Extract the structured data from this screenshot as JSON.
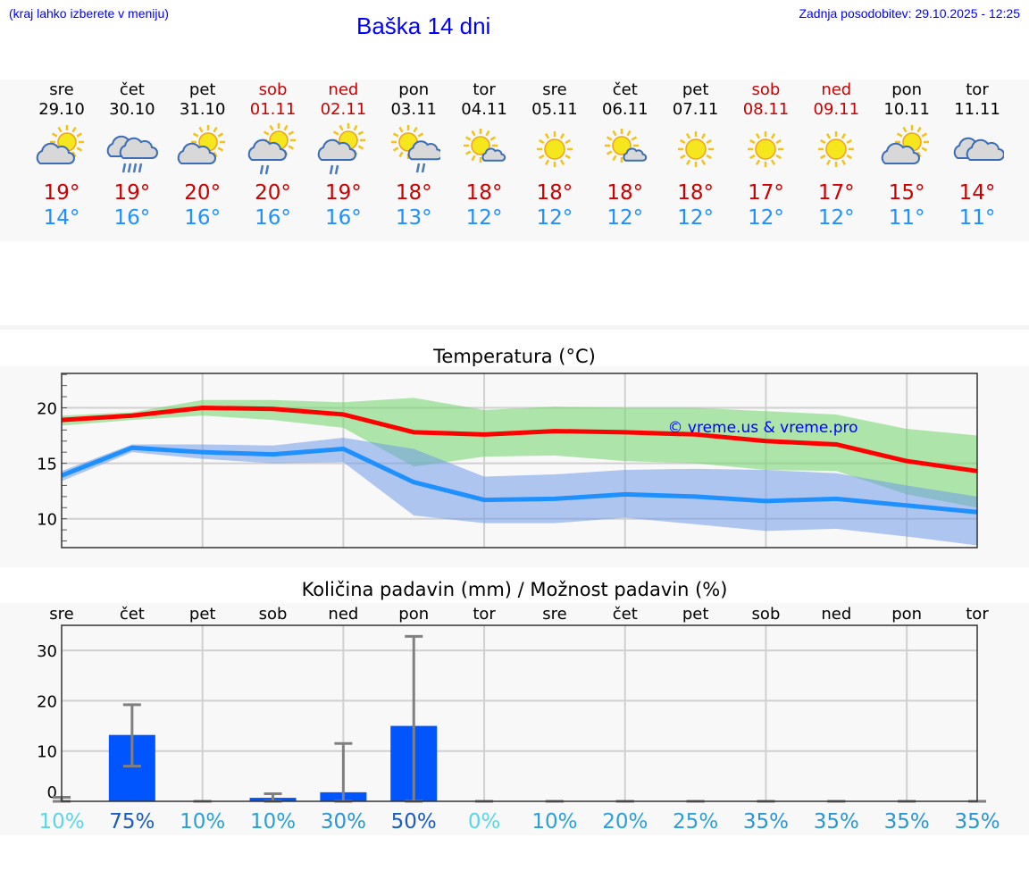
{
  "header": {
    "menu_hint": "(kraj lahko izberete v meniju)",
    "title": "Baška 14 dni",
    "updated": "Zadnja posodobitev: 29.10.2025 - 12:25"
  },
  "colors": {
    "weekday": "#000000",
    "weekend": "#cc0000",
    "max": "#cc0000",
    "min": "#1e90ff"
  },
  "days": [
    {
      "name": "sre",
      "date": "29.10",
      "weekend": false,
      "icon": "partly-cloudy",
      "max": "19°",
      "min": "14°"
    },
    {
      "name": "čet",
      "date": "30.10",
      "weekend": false,
      "icon": "cloudy-rain",
      "max": "19°",
      "min": "16°"
    },
    {
      "name": "pet",
      "date": "31.10",
      "weekend": false,
      "icon": "partly-cloudy",
      "max": "20°",
      "min": "16°"
    },
    {
      "name": "sob",
      "date": "01.11",
      "weekend": true,
      "icon": "partly-cloudy-light-rain",
      "max": "20°",
      "min": "16°"
    },
    {
      "name": "ned",
      "date": "02.11",
      "weekend": true,
      "icon": "partly-cloudy-light-rain",
      "max": "19°",
      "min": "16°"
    },
    {
      "name": "pon",
      "date": "03.11",
      "weekend": false,
      "icon": "sun-cloud-rain",
      "max": "18°",
      "min": "13°"
    },
    {
      "name": "tor",
      "date": "04.11",
      "weekend": false,
      "icon": "sun-small-cloud",
      "max": "18°",
      "min": "12°"
    },
    {
      "name": "sre",
      "date": "05.11",
      "weekend": false,
      "icon": "sun",
      "max": "18°",
      "min": "12°"
    },
    {
      "name": "čet",
      "date": "06.11",
      "weekend": false,
      "icon": "sun-small-cloud",
      "max": "18°",
      "min": "12°"
    },
    {
      "name": "pet",
      "date": "07.11",
      "weekend": false,
      "icon": "sun",
      "max": "18°",
      "min": "12°"
    },
    {
      "name": "sob",
      "date": "08.11",
      "weekend": true,
      "icon": "sun",
      "max": "17°",
      "min": "12°"
    },
    {
      "name": "ned",
      "date": "09.11",
      "weekend": true,
      "icon": "sun",
      "max": "17°",
      "min": "12°"
    },
    {
      "name": "pon",
      "date": "10.11",
      "weekend": false,
      "icon": "partly-cloudy",
      "max": "15°",
      "min": "11°"
    },
    {
      "name": "tor",
      "date": "11.11",
      "weekend": false,
      "icon": "cloudy",
      "max": "14°",
      "min": "11°"
    }
  ],
  "chart_data": [
    {
      "type": "line",
      "title": "Temperatura (°C)",
      "ylim": [
        7.4,
        23.1
      ],
      "yticks": [
        10,
        15,
        20
      ],
      "grid": true,
      "watermark": "© vreme.us & vreme.pro",
      "series": [
        {
          "name": "max",
          "color": "#ff0000",
          "values": [
            18.9,
            19.3,
            20.0,
            19.9,
            19.4,
            17.8,
            17.6,
            17.9,
            17.8,
            17.6,
            17.0,
            16.7,
            15.2,
            14.3
          ],
          "band_color": "#6fd36a",
          "band_upper": [
            19.3,
            19.6,
            20.7,
            20.7,
            20.5,
            20.9,
            19.8,
            20.1,
            20.0,
            20.0,
            19.7,
            19.4,
            18.1,
            17.5
          ],
          "band_lower": [
            18.4,
            18.9,
            19.3,
            18.9,
            18.2,
            14.7,
            15.6,
            15.7,
            15.2,
            15.0,
            14.4,
            14.3,
            12.2,
            11.0
          ]
        },
        {
          "name": "min",
          "color": "#1e90ff",
          "values": [
            13.9,
            16.4,
            16.0,
            15.8,
            16.3,
            13.3,
            11.7,
            11.8,
            12.2,
            12.0,
            11.6,
            11.8,
            11.2,
            10.6
          ],
          "band_color": "#6f9ae8",
          "band_upper": [
            14.3,
            16.7,
            16.7,
            16.6,
            17.3,
            16.3,
            13.8,
            14.0,
            14.4,
            14.5,
            14.4,
            14.1,
            13.0,
            12.0
          ],
          "band_lower": [
            13.4,
            16.0,
            15.4,
            15.0,
            15.1,
            10.3,
            9.6,
            9.6,
            10.1,
            9.5,
            8.9,
            9.1,
            8.4,
            7.6
          ]
        }
      ]
    },
    {
      "type": "bar",
      "title": "Količina padavin (mm) / Možnost padavin (%)",
      "ylim": [
        0,
        35
      ],
      "yticks": [
        0,
        10,
        20,
        30
      ],
      "grid": true,
      "categories": [
        "sre",
        "čet",
        "pet",
        "sob",
        "ned",
        "pon",
        "tor",
        "sre",
        "čet",
        "pet",
        "sob",
        "ned",
        "pon",
        "tor"
      ],
      "values": [
        0,
        13.2,
        0,
        0.7,
        1.8,
        15,
        0,
        0,
        0,
        0,
        0,
        0,
        0,
        0
      ],
      "err_low": [
        0,
        7,
        0,
        0,
        0,
        0,
        0,
        0,
        0,
        0,
        0,
        0,
        0,
        0
      ],
      "err_high": [
        0.8,
        19.2,
        0,
        1.5,
        11.5,
        32.8,
        0,
        0,
        0,
        0,
        0,
        0,
        0,
        0
      ],
      "probability": [
        "10%",
        "75%",
        "10%",
        "10%",
        "30%",
        "50%",
        "0%",
        "10%",
        "20%",
        "25%",
        "35%",
        "35%",
        "35%",
        "35%"
      ],
      "probability_colors": [
        "#5ad6e6",
        "#1a5cbf",
        "#2aa0d8",
        "#2aa0d8",
        "#2a96d4",
        "#1a5cbf",
        "#5ad6e6",
        "#2aa0d8",
        "#2aa0d8",
        "#2aa0d8",
        "#2a96d4",
        "#2a96d4",
        "#2a96d4",
        "#2a96d4"
      ],
      "bar_color": "#0055ff",
      "err_color": "#808080"
    }
  ]
}
